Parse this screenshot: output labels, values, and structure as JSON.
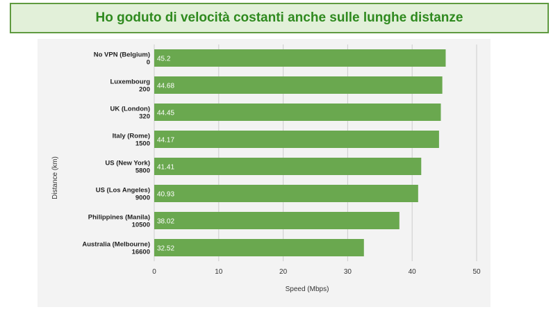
{
  "banner": {
    "title": "Ho goduto di velocità costanti anche sulle lunghe distanze"
  },
  "colors": {
    "bar": "#6aa84f",
    "banner_bg": "#e2f0d9",
    "banner_border": "#5f9a40",
    "banner_text": "#2f8a1f",
    "panel_bg": "#f3f3f3",
    "grid": "#cccccc"
  },
  "chart_data": {
    "type": "bar",
    "orientation": "horizontal",
    "title": "",
    "xlabel": "Speed (Mbps)",
    "ylabel": "Distance (km)",
    "xlim": [
      0,
      50
    ],
    "xticks": [
      0,
      10,
      20,
      30,
      40,
      50
    ],
    "grid": true,
    "categories": [
      {
        "name": "No VPN (Belgium)",
        "distance": "0"
      },
      {
        "name": "Luxembourg",
        "distance": "200"
      },
      {
        "name": "UK (London)",
        "distance": "320"
      },
      {
        "name": "Italy (Rome)",
        "distance": "1500"
      },
      {
        "name": "US (New York)",
        "distance": "5800"
      },
      {
        "name": "US (Los Angeles)",
        "distance": "9000"
      },
      {
        "name": "Philippines (Manila)",
        "distance": "10500"
      },
      {
        "name": "Australia (Melbourne)",
        "distance": "16600"
      }
    ],
    "values": [
      45.2,
      44.68,
      44.45,
      44.17,
      41.41,
      40.93,
      38.02,
      32.52
    ],
    "data_labels": [
      "45.2",
      "44.68",
      "44.45",
      "44.17",
      "41.41",
      "40.93",
      "38.02",
      "32.52"
    ]
  }
}
